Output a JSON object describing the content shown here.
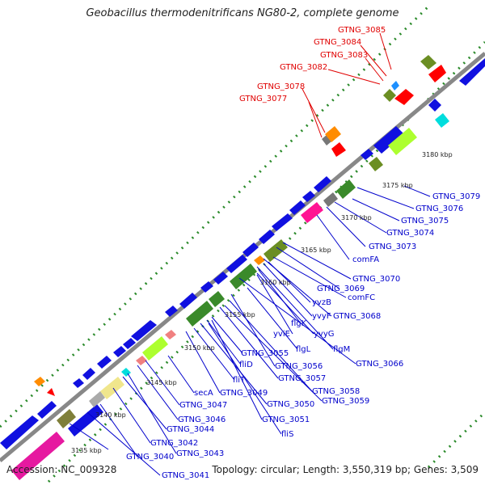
{
  "title": "Geobacillus thermodenitrificans NG80-2, complete genome",
  "footer": {
    "accession": "Accession: NC_009328",
    "summary": "Topology: circular; Length: 3,550,319 bp; Genes: 3,509"
  },
  "colors": {
    "backbone": "#8c8c8c",
    "blue": "#1010e0",
    "red_label": "#e00000",
    "blue_label": "#0000cc",
    "dots": "#2a8a2a"
  },
  "kbp_ticks": [
    "3135 kbp",
    "3140 kbp",
    "3145 kbp",
    "3150 kbp",
    "3155 kbp",
    "3160 kbp",
    "3165 kbp",
    "3170 kbp",
    "3175 kbp",
    "3180 kbp"
  ],
  "red_labels": [
    "GTNG_3085",
    "GTNG_3084",
    "GTNG_3083",
    "GTNG_3082",
    "GTNG_3078",
    "GTNG_3077"
  ],
  "blue_labels": [
    "GTNG_3079",
    "GTNG_3076",
    "GTNG_3075",
    "GTNG_3074",
    "GTNG_3073",
    "comFA",
    "GTNG_3070",
    "GTNG_3069",
    "comFC",
    "yvzB",
    "GTNG_3068",
    "yvyF",
    "flgK",
    "yviE",
    "yvyG",
    "flgL",
    "flgM",
    "GTNG_3066",
    "GTNG_3055",
    "GTNG_3056",
    "fliD",
    "GTNG_3057",
    "fliT",
    "GTNG_3058",
    "GTNG_3049",
    "GTNG_3059",
    "GTNG_3050",
    "secA",
    "GTNG_3047",
    "GTNG_3046",
    "GTNG_3051",
    "GTNG_3044",
    "fliS",
    "GTNG_3042",
    "GTNG_3043",
    "GTNG_3040",
    "GTNG_3041"
  ]
}
